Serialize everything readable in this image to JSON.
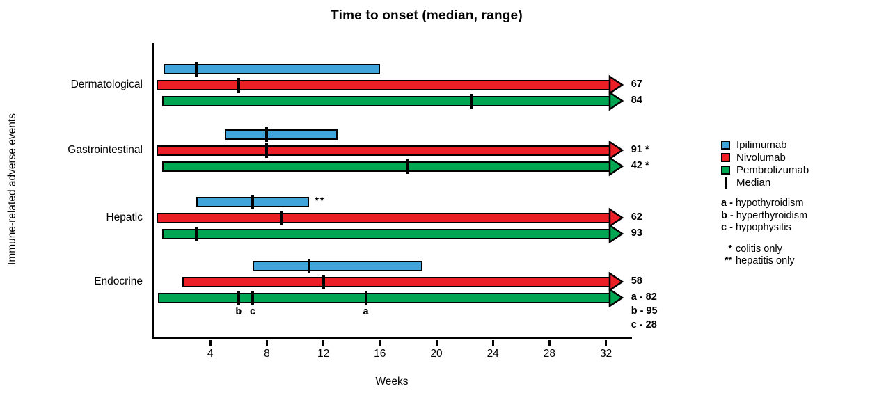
{
  "chart_data": {
    "type": "range-bar",
    "title": "Time to onset (median, range)",
    "xlabel": "Weeks",
    "ylabel": "Immune-related adverse events",
    "x_ticks": [
      4,
      8,
      12,
      16,
      20,
      24,
      28,
      32
    ],
    "x_range_weeks": [
      0,
      33
    ],
    "grid": false,
    "legend_position": "right",
    "series": [
      {
        "name": "Ipilimumab",
        "color": "#41A5DB"
      },
      {
        "name": "Nivolumab",
        "color": "#EC1E26"
      },
      {
        "name": "Pembrolizumab",
        "color": "#00A651"
      }
    ],
    "rows": [
      {
        "category": "Dermatological",
        "bars": [
          {
            "drug": "Ipilimumab",
            "start": 0.7,
            "end": 16,
            "medians": [
              3
            ],
            "arrow": false,
            "labels": []
          },
          {
            "drug": "Nivolumab",
            "start": 0.2,
            "end": 32.3,
            "medians": [
              6
            ],
            "arrow": true,
            "labels": [
              "67"
            ]
          },
          {
            "drug": "Pembrolizumab",
            "start": 0.6,
            "end": 32.3,
            "medians": [
              22.5
            ],
            "arrow": true,
            "labels": [
              "84"
            ]
          }
        ]
      },
      {
        "category": "Gastrointestinal",
        "bars": [
          {
            "drug": "Ipilimumab",
            "start": 5,
            "end": 13,
            "medians": [
              8
            ],
            "arrow": false,
            "labels": []
          },
          {
            "drug": "Nivolumab",
            "start": 0.2,
            "end": 32.3,
            "medians": [
              8
            ],
            "arrow": true,
            "labels": [
              "91 *"
            ]
          },
          {
            "drug": "Pembrolizumab",
            "start": 0.6,
            "end": 32.3,
            "medians": [
              18
            ],
            "arrow": true,
            "labels": [
              "42 *"
            ]
          }
        ]
      },
      {
        "category": "Hepatic",
        "bars": [
          {
            "drug": "Ipilimumab",
            "start": 3,
            "end": 11,
            "medians": [
              7
            ],
            "arrow": false,
            "labels": [],
            "suffix": "**"
          },
          {
            "drug": "Nivolumab",
            "start": 0.2,
            "end": 32.3,
            "medians": [
              9
            ],
            "arrow": true,
            "labels": [
              "62"
            ]
          },
          {
            "drug": "Pembrolizumab",
            "start": 0.6,
            "end": 32.3,
            "medians": [
              3
            ],
            "arrow": true,
            "labels": [
              "93"
            ]
          }
        ]
      },
      {
        "category": "Endocrine",
        "bars": [
          {
            "drug": "Ipilimumab",
            "start": 7,
            "end": 19,
            "medians": [
              11
            ],
            "arrow": false,
            "labels": []
          },
          {
            "drug": "Nivolumab",
            "start": 2,
            "end": 32.3,
            "medians": [
              12
            ],
            "arrow": true,
            "labels": [
              "58"
            ]
          },
          {
            "drug": "Pembrolizumab",
            "start": 0.3,
            "end": 32.3,
            "medians": [
              {
                "week": 6,
                "letter": "b"
              },
              {
                "week": 7,
                "letter": "c"
              },
              {
                "week": 15,
                "letter": "a"
              }
            ],
            "arrow": true,
            "labels": [
              "a - 82",
              "b - 95",
              "c - 28"
            ]
          }
        ]
      }
    ],
    "legend": {
      "items": [
        {
          "type": "swatch",
          "color": "#41A5DB",
          "label": "Ipilimumab"
        },
        {
          "type": "swatch",
          "color": "#EC1E26",
          "label": "Nivolumab"
        },
        {
          "type": "swatch",
          "color": "#00A651",
          "label": "Pembrolizumab"
        },
        {
          "type": "median",
          "label": "Median"
        }
      ],
      "letters": [
        {
          "key": "a -",
          "label": "hypothyroidism"
        },
        {
          "key": "b -",
          "label": "hyperthyroidism"
        },
        {
          "key": "c -",
          "label": "hypophysitis"
        }
      ],
      "notes": [
        {
          "key": "*",
          "label": "colitis only"
        },
        {
          "key": "**",
          "label": "hepatitis only"
        }
      ]
    }
  }
}
